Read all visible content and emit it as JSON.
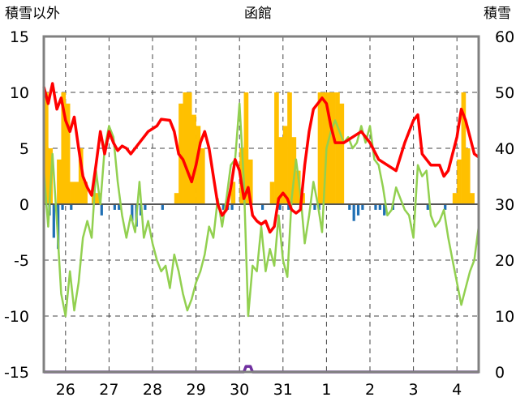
{
  "chart_data": {
    "type": "bar+line",
    "title": "函館",
    "left_axis_label": "積雪以外",
    "right_axis_label": "積雪",
    "left_ylim": [
      -15,
      15
    ],
    "left_ticks": [
      15,
      10,
      5,
      0,
      -5,
      -10,
      -15
    ],
    "right_ylim": [
      0,
      60
    ],
    "right_ticks": [
      60,
      50,
      40,
      30,
      20,
      10,
      0
    ],
    "x_range": [
      0,
      10
    ],
    "day_labels": [
      "26",
      "27",
      "28",
      "29",
      "30",
      "31",
      "1",
      "2",
      "3",
      "4"
    ],
    "day_centers": [
      0.5,
      1.5,
      2.5,
      3.5,
      4.5,
      5.5,
      6.5,
      7.5,
      8.5,
      9.5
    ],
    "day_boundaries": [
      0.5,
      1.5,
      2.5,
      3.5,
      4.5,
      5.5,
      6.5,
      7.5,
      8.5,
      9.5
    ],
    "grid": "dashed",
    "colors": {
      "precip": "#FFC000",
      "negative_bar": "#1F6FB4",
      "red_line": "#FF0000",
      "green_line": "#92D050",
      "snow_depth": "#7030A0",
      "zero_line": "#555555",
      "frame": "#808080"
    },
    "series": [
      {
        "role": "red_line",
        "x": [
          0,
          0.1,
          0.2,
          0.3,
          0.4,
          0.5,
          0.6,
          0.7,
          0.8,
          0.9,
          1.0,
          1.1,
          1.2,
          1.3,
          1.4,
          1.5,
          1.6,
          1.7,
          1.8,
          1.9,
          2.0,
          2.2,
          2.4,
          2.6,
          2.7,
          2.9,
          3.0,
          3.1,
          3.2,
          3.4,
          3.5,
          3.6,
          3.7,
          3.8,
          3.9,
          4.0,
          4.1,
          4.2,
          4.3,
          4.4,
          4.5,
          4.6,
          4.7,
          4.8,
          4.9,
          5.0,
          5.1,
          5.2,
          5.3,
          5.4,
          5.5,
          5.6,
          5.7,
          5.8,
          5.9,
          6.0,
          6.1,
          6.2,
          6.3,
          6.4,
          6.5,
          6.6,
          6.7,
          6.9,
          7.1,
          7.3,
          7.5,
          7.7,
          7.9,
          8.1,
          8.3,
          8.5,
          8.6,
          8.7,
          8.9,
          9.1,
          9.2,
          9.3,
          9.4,
          9.5,
          9.6,
          9.7,
          9.8,
          9.9,
          10.0
        ],
        "y": [
          10.5,
          9.0,
          10.8,
          8.5,
          9.5,
          7.5,
          6.5,
          7.8,
          5.0,
          2.5,
          1.5,
          0.8,
          3.5,
          6.5,
          4.5,
          6.5,
          5.5,
          4.8,
          5.2,
          5.0,
          4.5,
          5.5,
          6.5,
          7.0,
          7.6,
          7.5,
          6.5,
          4.5,
          4.0,
          2.0,
          3.5,
          5.5,
          6.5,
          5.0,
          2.5,
          0.0,
          -1.0,
          -0.5,
          1.5,
          4.0,
          3.0,
          0.5,
          1.5,
          -1.0,
          -1.5,
          -1.8,
          -1.5,
          -2.5,
          -2.0,
          0.5,
          1.0,
          0.5,
          -0.5,
          -0.8,
          -0.5,
          3.5,
          6.5,
          8.5,
          9.0,
          9.5,
          9.0,
          7.0,
          5.5,
          5.5,
          6.0,
          6.5,
          5.5,
          4.0,
          3.5,
          3.0,
          5.5,
          7.5,
          8.0,
          4.5,
          3.5,
          3.5,
          2.5,
          3.0,
          4.5,
          6.0,
          8.5,
          7.5,
          6.0,
          4.5,
          4.2
        ]
      },
      {
        "role": "green_line",
        "x": [
          0,
          0.1,
          0.2,
          0.3,
          0.4,
          0.5,
          0.6,
          0.7,
          0.8,
          0.9,
          1.0,
          1.1,
          1.2,
          1.3,
          1.4,
          1.5,
          1.6,
          1.7,
          1.8,
          1.9,
          2.0,
          2.1,
          2.2,
          2.3,
          2.4,
          2.5,
          2.6,
          2.7,
          2.8,
          2.9,
          3.0,
          3.1,
          3.2,
          3.3,
          3.4,
          3.5,
          3.6,
          3.7,
          3.8,
          3.9,
          4.0,
          4.1,
          4.2,
          4.3,
          4.4,
          4.5,
          4.6,
          4.7,
          4.8,
          4.9,
          5.0,
          5.1,
          5.2,
          5.3,
          5.4,
          5.5,
          5.6,
          5.7,
          5.8,
          5.9,
          6.0,
          6.1,
          6.2,
          6.3,
          6.4,
          6.5,
          6.6,
          6.7,
          6.8,
          6.9,
          7.0,
          7.1,
          7.2,
          7.3,
          7.4,
          7.5,
          7.6,
          7.7,
          7.8,
          7.9,
          8.0,
          8.1,
          8.2,
          8.3,
          8.4,
          8.5,
          8.6,
          8.7,
          8.8,
          8.9,
          9.0,
          9.1,
          9.2,
          9.3,
          9.4,
          9.5,
          9.6,
          9.7,
          9.8,
          9.9,
          10.0
        ],
        "y": [
          3.0,
          -2.0,
          4.5,
          -1.5,
          -8.0,
          -10.0,
          -6.0,
          -9.5,
          -7.0,
          -3.0,
          -1.5,
          -3.0,
          3.0,
          0.0,
          5.0,
          7.0,
          6.0,
          2.0,
          -1.0,
          -3.0,
          -1.0,
          -2.5,
          2.0,
          -3.0,
          -1.5,
          -3.5,
          -5.0,
          -6.0,
          -5.5,
          -7.5,
          -4.5,
          -6.0,
          -8.0,
          -9.5,
          -8.5,
          -7.0,
          -6.0,
          -4.5,
          -2.0,
          -3.0,
          0.5,
          -2.0,
          0.5,
          3.5,
          4.0,
          9.0,
          2.0,
          -10.0,
          -5.5,
          -6.0,
          -2.0,
          -6.0,
          -4.0,
          -5.5,
          -1.0,
          -5.0,
          -6.5,
          0.5,
          4.0,
          1.0,
          -3.5,
          -1.0,
          2.0,
          0.0,
          -2.5,
          5.0,
          6.5,
          7.5,
          6.5,
          5.5,
          6.0,
          5.0,
          5.5,
          7.0,
          5.5,
          7.0,
          4.0,
          3.5,
          1.5,
          -1.0,
          -0.5,
          1.5,
          0.5,
          -0.5,
          -1.0,
          -3.0,
          3.5,
          2.5,
          3.0,
          -1.0,
          -2.0,
          -1.5,
          -0.5,
          -3.0,
          -5.0,
          -7.0,
          -9.0,
          -7.5,
          -6.0,
          -5.0,
          -2.0
        ]
      },
      {
        "role": "snow_depth",
        "axis": "right",
        "x": [
          0,
          4.6,
          4.65,
          4.7,
          4.75,
          4.8,
          10
        ],
        "y": [
          0,
          0,
          1,
          1,
          1,
          0,
          0
        ]
      }
    ],
    "bars_positive": [
      {
        "x": 0.0,
        "v": 10
      },
      {
        "x": 0.1,
        "v": 5
      },
      {
        "x": 0.3,
        "v": 4
      },
      {
        "x": 0.4,
        "v": 10
      },
      {
        "x": 0.5,
        "v": 9
      },
      {
        "x": 0.6,
        "v": 2
      },
      {
        "x": 0.7,
        "v": 2
      },
      {
        "x": 0.8,
        "v": 5
      },
      {
        "x": 0.9,
        "v": 2
      },
      {
        "x": 1.1,
        "v": 1
      },
      {
        "x": 1.2,
        "v": 1
      },
      {
        "x": 3.0,
        "v": 1
      },
      {
        "x": 3.1,
        "v": 9
      },
      {
        "x": 3.2,
        "v": 10
      },
      {
        "x": 3.3,
        "v": 10
      },
      {
        "x": 3.4,
        "v": 8
      },
      {
        "x": 3.5,
        "v": 7
      },
      {
        "x": 3.6,
        "v": 5
      },
      {
        "x": 4.3,
        "v": 2
      },
      {
        "x": 4.5,
        "v": 5
      },
      {
        "x": 4.6,
        "v": 10
      },
      {
        "x": 4.7,
        "v": 4
      },
      {
        "x": 5.2,
        "v": 2
      },
      {
        "x": 5.3,
        "v": 10
      },
      {
        "x": 5.4,
        "v": 6
      },
      {
        "x": 5.5,
        "v": 7
      },
      {
        "x": 5.6,
        "v": 10
      },
      {
        "x": 5.7,
        "v": 6
      },
      {
        "x": 5.8,
        "v": 3
      },
      {
        "x": 5.9,
        "v": 1
      },
      {
        "x": 6.3,
        "v": 10
      },
      {
        "x": 6.4,
        "v": 10
      },
      {
        "x": 6.5,
        "v": 10
      },
      {
        "x": 6.6,
        "v": 10
      },
      {
        "x": 6.7,
        "v": 10
      },
      {
        "x": 6.8,
        "v": 9
      },
      {
        "x": 9.4,
        "v": 1
      },
      {
        "x": 9.5,
        "v": 4
      },
      {
        "x": 9.6,
        "v": 10
      },
      {
        "x": 9.7,
        "v": 5
      },
      {
        "x": 9.8,
        "v": 1
      }
    ],
    "bars_negative": [
      {
        "x": 0.1,
        "v": -1
      },
      {
        "x": 0.2,
        "v": -3
      },
      {
        "x": 0.3,
        "v": -4
      },
      {
        "x": 0.4,
        "v": -0.5
      },
      {
        "x": 0.6,
        "v": -0.5
      },
      {
        "x": 1.3,
        "v": -1
      },
      {
        "x": 1.6,
        "v": -0.5
      },
      {
        "x": 1.7,
        "v": -0.5
      },
      {
        "x": 2.0,
        "v": -1.5
      },
      {
        "x": 2.1,
        "v": -2
      },
      {
        "x": 2.2,
        "v": -1
      },
      {
        "x": 2.3,
        "v": -0.5
      },
      {
        "x": 2.7,
        "v": -0.5
      },
      {
        "x": 4.1,
        "v": -0.5
      },
      {
        "x": 4.2,
        "v": -0.5
      },
      {
        "x": 4.3,
        "v": -0.5
      },
      {
        "x": 5.0,
        "v": -0.5
      },
      {
        "x": 5.4,
        "v": -0.5
      },
      {
        "x": 5.6,
        "v": -0.5
      },
      {
        "x": 6.2,
        "v": -0.5
      },
      {
        "x": 6.3,
        "v": -0.5
      },
      {
        "x": 7.0,
        "v": -0.5
      },
      {
        "x": 7.1,
        "v": -1.5
      },
      {
        "x": 7.2,
        "v": -1
      },
      {
        "x": 7.3,
        "v": -0.5
      },
      {
        "x": 7.6,
        "v": -0.5
      },
      {
        "x": 7.7,
        "v": -0.5
      },
      {
        "x": 7.8,
        "v": -1
      },
      {
        "x": 8.0,
        "v": -0.5
      },
      {
        "x": 8.8,
        "v": -0.5
      },
      {
        "x": 9.2,
        "v": -0.5
      }
    ]
  }
}
